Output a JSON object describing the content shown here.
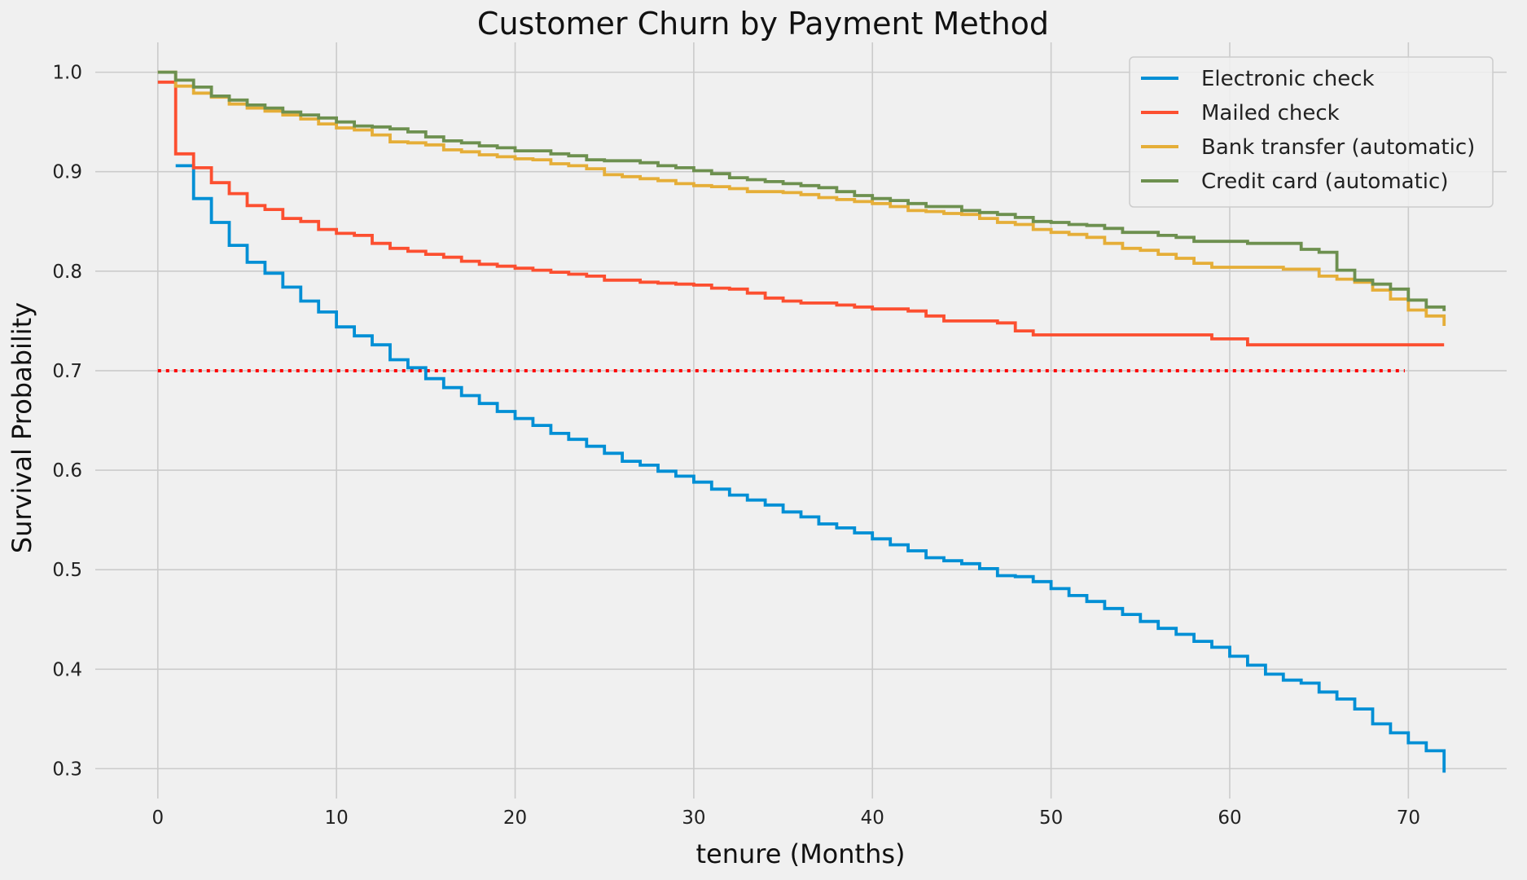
{
  "chart_data": {
    "type": "line",
    "title": "Customer Churn by Payment Method",
    "xlabel": "tenure (Months)",
    "ylabel": "Survival Probability",
    "xlim": [
      -3.5,
      75.5
    ],
    "ylim": [
      0.27,
      1.03
    ],
    "xticks": [
      0,
      10,
      20,
      30,
      40,
      50,
      60,
      70
    ],
    "yticks": [
      0.3,
      0.4,
      0.5,
      0.6,
      0.7,
      0.8,
      0.9,
      1.0
    ],
    "xtick_labels": [
      "0",
      "10",
      "20",
      "30",
      "40",
      "50",
      "60",
      "70"
    ],
    "ytick_labels": [
      "0.3",
      "0.4",
      "0.5",
      "0.6",
      "0.7",
      "0.8",
      "0.9",
      "1.0"
    ],
    "grid": true,
    "legend_position": "top-right",
    "step": true,
    "series": [
      {
        "name": "Electronic check",
        "color": "#008fd5",
        "x": [
          1,
          2,
          3,
          4,
          5,
          6,
          7,
          8,
          9,
          10,
          11,
          12,
          13,
          14,
          15,
          16,
          17,
          18,
          19,
          20,
          21,
          22,
          23,
          24,
          25,
          26,
          27,
          28,
          29,
          30,
          31,
          32,
          33,
          34,
          35,
          36,
          37,
          38,
          39,
          40,
          41,
          42,
          43,
          44,
          45,
          46,
          47,
          48,
          49,
          50,
          51,
          52,
          53,
          54,
          55,
          56,
          57,
          58,
          59,
          60,
          61,
          62,
          63,
          64,
          65,
          66,
          67,
          68,
          69,
          70,
          71,
          72
        ],
        "y": [
          0.906,
          0.873,
          0.849,
          0.826,
          0.809,
          0.798,
          0.784,
          0.77,
          0.759,
          0.744,
          0.735,
          0.726,
          0.711,
          0.703,
          0.692,
          0.683,
          0.675,
          0.667,
          0.659,
          0.652,
          0.645,
          0.637,
          0.631,
          0.624,
          0.617,
          0.609,
          0.605,
          0.599,
          0.594,
          0.588,
          0.581,
          0.575,
          0.57,
          0.565,
          0.558,
          0.553,
          0.546,
          0.542,
          0.537,
          0.531,
          0.525,
          0.519,
          0.512,
          0.509,
          0.506,
          0.501,
          0.494,
          0.493,
          0.488,
          0.481,
          0.474,
          0.468,
          0.461,
          0.455,
          0.448,
          0.441,
          0.435,
          0.428,
          0.422,
          0.413,
          0.404,
          0.395,
          0.389,
          0.386,
          0.377,
          0.37,
          0.36,
          0.345,
          0.336,
          0.326,
          0.318,
          0.296
        ]
      },
      {
        "name": "Mailed check",
        "color": "#fc4f30",
        "x": [
          0,
          1,
          2,
          3,
          4,
          5,
          6,
          7,
          8,
          9,
          10,
          11,
          12,
          13,
          14,
          15,
          16,
          17,
          18,
          19,
          20,
          21,
          22,
          23,
          24,
          25,
          26,
          27,
          28,
          29,
          30,
          31,
          32,
          33,
          34,
          35,
          36,
          37,
          38,
          39,
          40,
          41,
          42,
          43,
          44,
          45,
          46,
          47,
          48,
          49,
          50,
          51,
          52,
          53,
          54,
          55,
          56,
          57,
          58,
          59,
          60,
          61,
          62,
          63,
          64,
          65,
          66,
          67,
          68,
          69,
          70,
          71,
          72
        ],
        "y": [
          0.99,
          0.918,
          0.904,
          0.889,
          0.878,
          0.866,
          0.862,
          0.853,
          0.85,
          0.842,
          0.838,
          0.836,
          0.828,
          0.823,
          0.82,
          0.817,
          0.814,
          0.81,
          0.807,
          0.805,
          0.803,
          0.801,
          0.799,
          0.797,
          0.795,
          0.791,
          0.791,
          0.789,
          0.788,
          0.787,
          0.786,
          0.783,
          0.782,
          0.778,
          0.773,
          0.77,
          0.768,
          0.768,
          0.766,
          0.764,
          0.762,
          0.762,
          0.76,
          0.755,
          0.75,
          0.75,
          0.75,
          0.748,
          0.74,
          0.736,
          0.736,
          0.736,
          0.736,
          0.736,
          0.736,
          0.736,
          0.736,
          0.736,
          0.736,
          0.732,
          0.732,
          0.726,
          0.726,
          0.726,
          0.726,
          0.726,
          0.726,
          0.726,
          0.726,
          0.726,
          0.726,
          0.726,
          0.726
        ]
      },
      {
        "name": "Bank transfer (automatic)",
        "color": "#e5ae38",
        "x": [
          0,
          1,
          2,
          3,
          4,
          5,
          6,
          7,
          8,
          9,
          10,
          11,
          12,
          13,
          14,
          15,
          16,
          17,
          18,
          19,
          20,
          21,
          22,
          23,
          24,
          25,
          26,
          27,
          28,
          29,
          30,
          31,
          32,
          33,
          34,
          35,
          36,
          37,
          38,
          39,
          40,
          41,
          42,
          43,
          44,
          45,
          46,
          47,
          48,
          49,
          50,
          51,
          52,
          53,
          54,
          55,
          56,
          57,
          58,
          59,
          60,
          61,
          62,
          63,
          64,
          65,
          66,
          67,
          68,
          69,
          70,
          71,
          72
        ],
        "y": [
          1.0,
          0.986,
          0.979,
          0.975,
          0.968,
          0.964,
          0.961,
          0.957,
          0.953,
          0.948,
          0.944,
          0.942,
          0.937,
          0.93,
          0.929,
          0.927,
          0.922,
          0.92,
          0.917,
          0.915,
          0.913,
          0.912,
          0.908,
          0.906,
          0.903,
          0.897,
          0.895,
          0.893,
          0.891,
          0.888,
          0.886,
          0.885,
          0.883,
          0.88,
          0.88,
          0.879,
          0.877,
          0.874,
          0.872,
          0.87,
          0.868,
          0.865,
          0.861,
          0.86,
          0.858,
          0.857,
          0.853,
          0.849,
          0.847,
          0.842,
          0.839,
          0.837,
          0.834,
          0.828,
          0.823,
          0.821,
          0.817,
          0.813,
          0.808,
          0.804,
          0.804,
          0.804,
          0.804,
          0.802,
          0.802,
          0.795,
          0.792,
          0.789,
          0.781,
          0.772,
          0.761,
          0.755,
          0.745
        ]
      },
      {
        "name": "Credit card (automatic)",
        "color": "#6d904f",
        "x": [
          0,
          1,
          2,
          3,
          4,
          5,
          6,
          7,
          8,
          9,
          10,
          11,
          12,
          13,
          14,
          15,
          16,
          17,
          18,
          19,
          20,
          21,
          22,
          23,
          24,
          25,
          26,
          27,
          28,
          29,
          30,
          31,
          32,
          33,
          34,
          35,
          36,
          37,
          38,
          39,
          40,
          41,
          42,
          43,
          44,
          45,
          46,
          47,
          48,
          49,
          50,
          51,
          52,
          53,
          54,
          55,
          56,
          57,
          58,
          59,
          60,
          61,
          62,
          63,
          64,
          65,
          66,
          67,
          68,
          69,
          70,
          71,
          72
        ],
        "y": [
          1.0,
          0.992,
          0.985,
          0.976,
          0.972,
          0.967,
          0.964,
          0.96,
          0.957,
          0.954,
          0.95,
          0.946,
          0.945,
          0.943,
          0.94,
          0.935,
          0.931,
          0.929,
          0.926,
          0.924,
          0.921,
          0.921,
          0.918,
          0.916,
          0.912,
          0.911,
          0.911,
          0.909,
          0.906,
          0.904,
          0.901,
          0.898,
          0.894,
          0.892,
          0.89,
          0.888,
          0.886,
          0.884,
          0.88,
          0.876,
          0.873,
          0.871,
          0.868,
          0.865,
          0.865,
          0.861,
          0.859,
          0.857,
          0.854,
          0.85,
          0.849,
          0.847,
          0.846,
          0.843,
          0.839,
          0.839,
          0.836,
          0.834,
          0.83,
          0.83,
          0.83,
          0.828,
          0.828,
          0.828,
          0.822,
          0.819,
          0.801,
          0.791,
          0.787,
          0.782,
          0.771,
          0.764,
          0.76
        ]
      }
    ],
    "reference_line": {
      "y": 0.7,
      "x": [
        0,
        69.8
      ],
      "color": "#ff0000",
      "style": "dotted"
    }
  }
}
